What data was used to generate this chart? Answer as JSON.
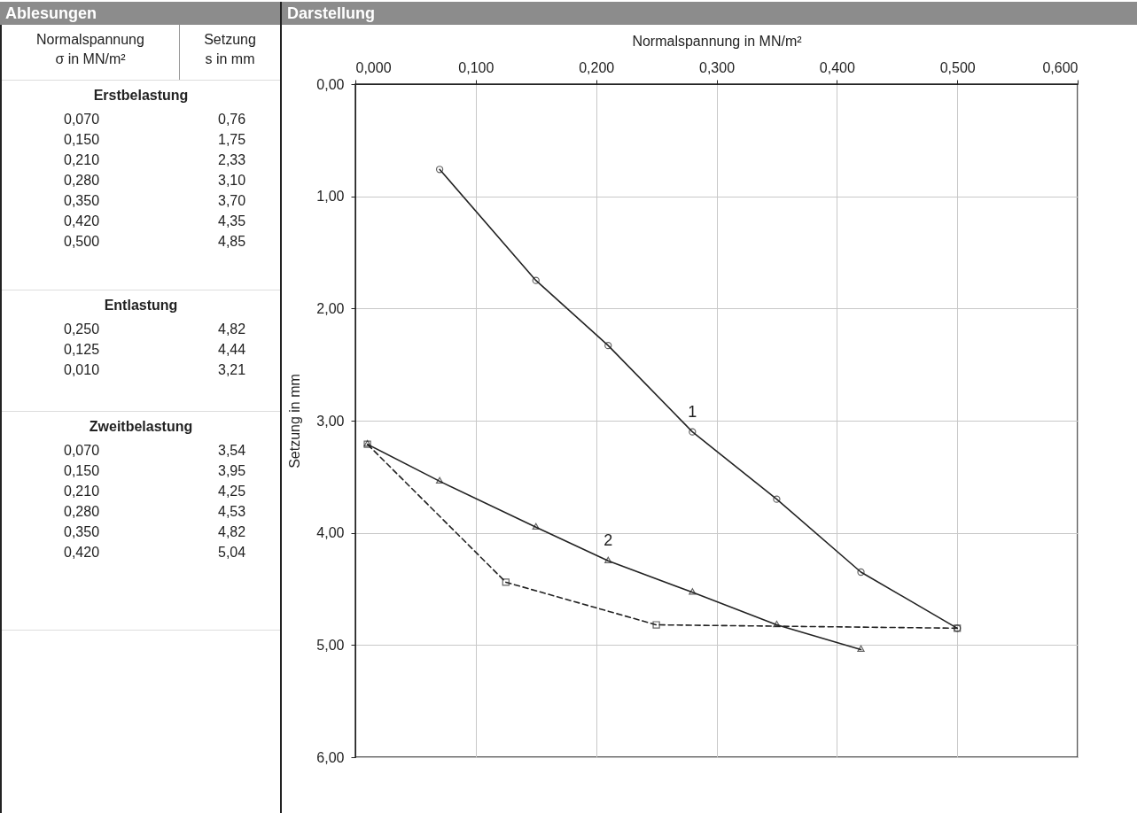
{
  "chart_data": [
    {
      "type": "other",
      "title": "Ablesungen",
      "annotations": [
        "Normalspannung\nσ in MN/m²",
        "Setzung\ns in mm"
      ]
    },
    {
      "type": "other",
      "title": "Erstbelastung",
      "annotations": [
        "0,070",
        "0,76",
        "0,150",
        "1,75",
        "0,210",
        "2,33",
        "0,280",
        "3,10",
        "0,350",
        "3,70",
        "0,420",
        "4,35",
        "0,500",
        "4,85"
      ]
    },
    {
      "type": "other",
      "title": "Entlastung",
      "annotations": [
        "0,250",
        "4,82",
        "0,125",
        "4,44",
        "0,010",
        "3,21"
      ]
    },
    {
      "type": "other",
      "title": "Zweitbelastung",
      "annotations": [
        "0,070",
        "3,54",
        "0,150",
        "3,95",
        "0,210",
        "4,25",
        "0,280",
        "4,53",
        "0,350",
        "4,82",
        "0,420",
        "5,04"
      ]
    },
    {
      "type": "line",
      "title": "Darstellung",
      "xlabel": "Normalspannung in MN/m²",
      "ylabel": "Setzung in mm",
      "xlim": [
        0,
        0.6
      ],
      "xticks": [
        {
          "value": 0,
          "label": "0,000"
        },
        {
          "value": 0.1,
          "label": "0,100"
        },
        {
          "value": 0.2,
          "label": "0,200"
        },
        {
          "value": 0.3,
          "label": "0,300"
        },
        {
          "value": 0.4,
          "label": "0,400"
        },
        {
          "value": 0.5,
          "label": "0,500"
        },
        {
          "value": 0.6,
          "label": "0,600"
        }
      ],
      "ylim": [
        6,
        0
      ],
      "yticks": [
        {
          "value": 0,
          "label": "0,00"
        },
        {
          "value": 1,
          "label": "1,00"
        },
        {
          "value": 2,
          "label": "2,00"
        },
        {
          "value": 3,
          "label": "3,00"
        },
        {
          "value": 4,
          "label": "4,00"
        },
        {
          "value": 5,
          "label": "5,00"
        },
        {
          "value": 6,
          "label": "6,00"
        }
      ],
      "grid": true,
      "series": [
        {
          "color": "#222222",
          "marker": "circle",
          "line_style": "solid",
          "x": [
            0.07,
            0.15,
            0.21,
            0.28,
            0.35,
            0.42,
            0.5
          ],
          "values": [
            0.76,
            1.75,
            2.33,
            3.1,
            3.7,
            4.35,
            4.85
          ]
        },
        {
          "color": "#222222",
          "marker": "square",
          "line_style": "dashed",
          "x": [
            0.5,
            0.25,
            0.125,
            0.01
          ],
          "values": [
            4.85,
            4.82,
            4.44,
            3.21
          ]
        },
        {
          "color": "#222222",
          "marker": "triangle",
          "line_style": "solid",
          "x": [
            0.01,
            0.07,
            0.15,
            0.21,
            0.28,
            0.35,
            0.42
          ],
          "values": [
            3.21,
            3.54,
            3.95,
            4.25,
            4.53,
            4.82,
            5.04
          ]
        }
      ],
      "annotations": [
        {
          "text": "1",
          "x": 0.28,
          "y": 3.1
        },
        {
          "text": "2",
          "x": 0.21,
          "y": 4.25
        }
      ]
    }
  ]
}
